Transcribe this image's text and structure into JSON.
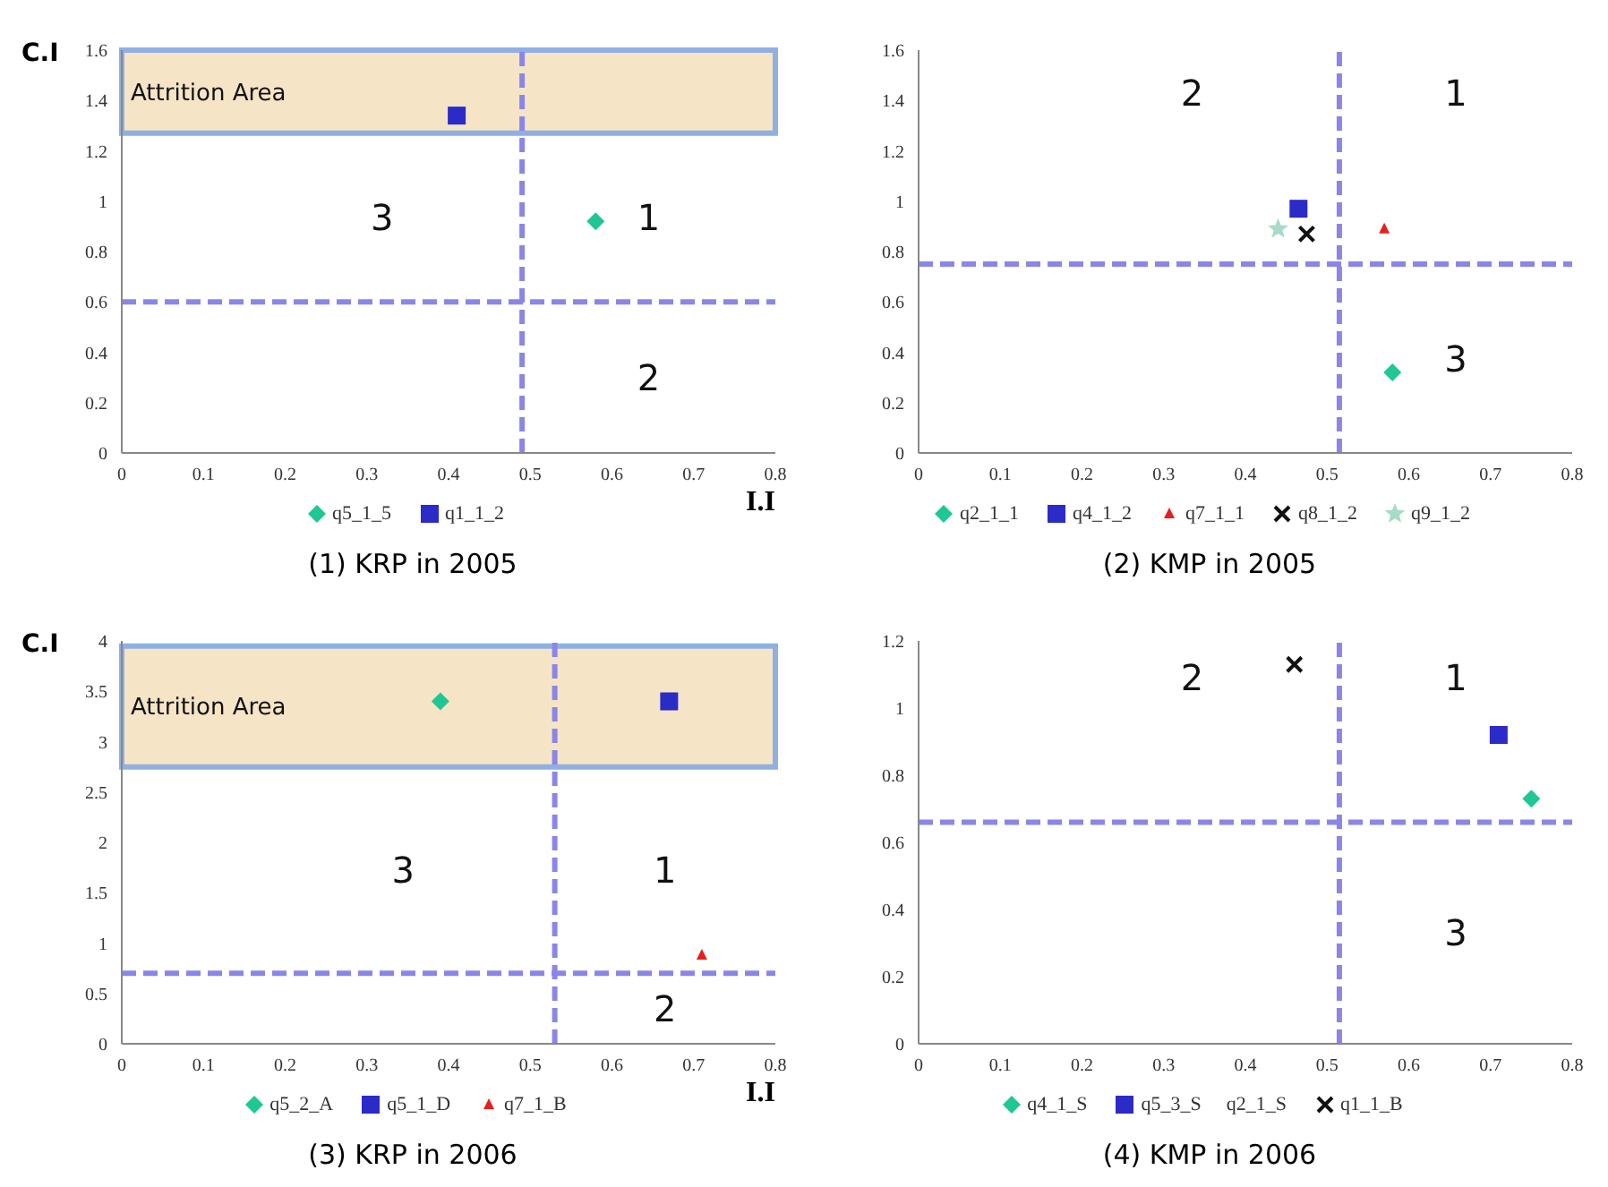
{
  "chart_data": [
    {
      "type": "scatter",
      "title": "(1) KRP in 2005",
      "xlabel": "I.I",
      "ylabel": "C.I",
      "xlim": [
        0,
        0.8
      ],
      "xticks": [
        0,
        0.1,
        0.2,
        0.3,
        0.4,
        0.5,
        0.6,
        0.7,
        0.8
      ],
      "ylim": [
        0,
        1.6
      ],
      "yticks": [
        0,
        0.2,
        0.4,
        0.6,
        0.8,
        1,
        1.2,
        1.4,
        1.6
      ],
      "legend": "bottom",
      "series": [
        {
          "name": "q5_1_5",
          "color": "#1fc795",
          "marker": "diamond",
          "x": [
            0.58
          ],
          "values": [
            0.92
          ]
        },
        {
          "name": "q1_1_2",
          "color": "#2b2bc8",
          "marker": "square",
          "x": [
            0.41
          ],
          "values": [
            1.34
          ]
        }
      ],
      "ref_lines": [
        {
          "axis": "x",
          "value": 0.49,
          "color": "#8a86e8",
          "line_style": "dashed"
        },
        {
          "axis": "y",
          "value": 0.6,
          "color": "#8a86e8",
          "line_style": "dashed"
        }
      ],
      "bands": [
        {
          "axis": "y",
          "from": 1.27,
          "to": 1.6,
          "label": "Attrition Area",
          "color": "#f6e4c6"
        }
      ],
      "annotations": [
        "3",
        "1",
        "2"
      ]
    },
    {
      "type": "scatter",
      "title": "(2) KMP in 2005",
      "xlim": [
        0,
        0.8
      ],
      "xticks": [
        0,
        0.1,
        0.2,
        0.3,
        0.4,
        0.5,
        0.6,
        0.7,
        0.8
      ],
      "ylim": [
        0,
        1.6
      ],
      "yticks": [
        0,
        0.2,
        0.4,
        0.6,
        0.8,
        1,
        1.2,
        1.4,
        1.6
      ],
      "legend": "bottom",
      "series": [
        {
          "name": "q2_1_1",
          "color": "#1fc795",
          "marker": "diamond",
          "x": [
            0.58
          ],
          "values": [
            0.32
          ]
        },
        {
          "name": "q4_1_2",
          "color": "#2b2bc8",
          "marker": "square",
          "x": [
            0.465
          ],
          "values": [
            0.97
          ]
        },
        {
          "name": "q7_1_1",
          "color": "#e81e1e",
          "marker": "triangle",
          "x": [
            0.57
          ],
          "values": [
            0.89
          ]
        },
        {
          "name": "q8_1_2",
          "color": "#111111",
          "marker": "cross",
          "x": [
            0.475
          ],
          "values": [
            0.87
          ]
        },
        {
          "name": "q9_1_2",
          "color": "#a6dcc6",
          "marker": "star",
          "x": [
            0.44
          ],
          "values": [
            0.89
          ]
        }
      ],
      "ref_lines": [
        {
          "axis": "x",
          "value": 0.515,
          "color": "#8a86e8",
          "line_style": "dashed"
        },
        {
          "axis": "y",
          "value": 0.75,
          "color": "#8a86e8",
          "line_style": "dashed"
        }
      ],
      "annotations": [
        "2",
        "1",
        "3"
      ]
    },
    {
      "type": "scatter",
      "title": "(3) KRP in 2006",
      "xlabel": "I.I",
      "ylabel": "C.I",
      "xlim": [
        0,
        0.8
      ],
      "xticks": [
        0,
        0.1,
        0.2,
        0.3,
        0.4,
        0.5,
        0.6,
        0.7,
        0.8
      ],
      "ylim": [
        0,
        4
      ],
      "yticks": [
        0,
        0.5,
        1,
        1.5,
        2,
        2.5,
        3,
        3.5,
        4
      ],
      "legend": "bottom",
      "series": [
        {
          "name": "q5_2_A",
          "color": "#1fc795",
          "marker": "diamond",
          "x": [
            0.39
          ],
          "values": [
            3.4
          ]
        },
        {
          "name": "q5_1_D",
          "color": "#2b2bc8",
          "marker": "square",
          "x": [
            0.67
          ],
          "values": [
            3.4
          ]
        },
        {
          "name": "q7_1_B",
          "color": "#e81e1e",
          "marker": "triangle",
          "x": [
            0.71
          ],
          "values": [
            0.88
          ]
        }
      ],
      "ref_lines": [
        {
          "axis": "x",
          "value": 0.53,
          "color": "#8a86e8",
          "line_style": "dashed"
        },
        {
          "axis": "y",
          "value": 0.7,
          "color": "#8a86e8",
          "line_style": "dashed"
        }
      ],
      "bands": [
        {
          "axis": "y",
          "from": 2.75,
          "to": 3.95,
          "label": "Attrition Area",
          "color": "#f6e4c6"
        }
      ],
      "annotations": [
        "3",
        "1",
        "2"
      ]
    },
    {
      "type": "scatter",
      "title": "(4) KMP in 2006",
      "xlim": [
        0,
        0.8
      ],
      "xticks": [
        0,
        0.1,
        0.2,
        0.3,
        0.4,
        0.5,
        0.6,
        0.7,
        0.8
      ],
      "ylim": [
        0,
        1.2
      ],
      "yticks": [
        0,
        0.2,
        0.4,
        0.6,
        0.8,
        1,
        1.2
      ],
      "legend": "bottom",
      "series": [
        {
          "name": "q4_1_S",
          "color": "#1fc795",
          "marker": "diamond",
          "x": [
            0.75
          ],
          "values": [
            0.73
          ]
        },
        {
          "name": "q5_3_S",
          "color": "#2b2bc8",
          "marker": "square",
          "x": [
            0.71
          ],
          "values": [
            0.92
          ]
        },
        {
          "name": "q2_1_S"
        },
        {
          "name": "q1_1_B",
          "color": "#111111",
          "marker": "cross",
          "x": [
            0.46
          ],
          "values": [
            1.13
          ]
        }
      ],
      "ref_lines": [
        {
          "axis": "x",
          "value": 0.515,
          "color": "#8a86e8",
          "line_style": "dashed"
        },
        {
          "axis": "y",
          "value": 0.66,
          "color": "#8a86e8",
          "line_style": "dashed"
        }
      ],
      "annotations": [
        "2",
        "1",
        "3"
      ]
    }
  ]
}
